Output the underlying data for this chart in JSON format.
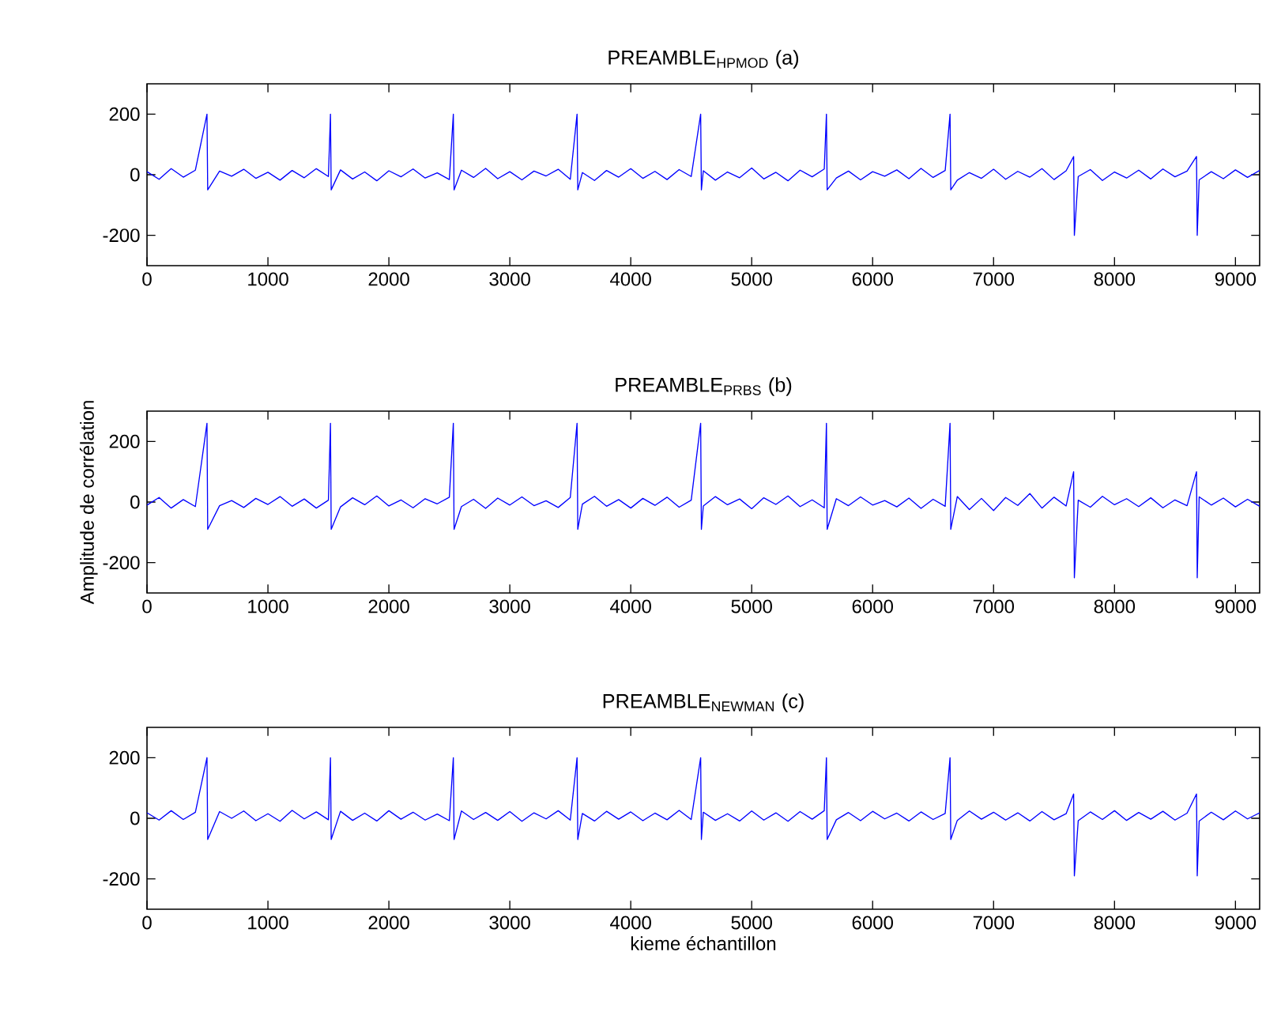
{
  "chart_data": [
    {
      "type": "line",
      "title": "PREAMBLE$_{HPMOD}$ (a)",
      "xlim": [
        0,
        9200
      ],
      "ylim": [
        -300,
        300
      ],
      "xticks": [
        0,
        1000,
        2000,
        3000,
        4000,
        5000,
        6000,
        7000,
        8000,
        9000
      ],
      "yticks": [
        -200,
        0,
        200
      ],
      "grid": false,
      "x": [
        0,
        100,
        200,
        300,
        400,
        496,
        502,
        600,
        700,
        800,
        900,
        1000,
        1100,
        1200,
        1300,
        1400,
        1500,
        1517,
        1523,
        1600,
        1700,
        1800,
        1900,
        2000,
        2100,
        2200,
        2300,
        2400,
        2500,
        2533,
        2539,
        2600,
        2700,
        2800,
        2900,
        3000,
        3100,
        3200,
        3300,
        3400,
        3500,
        3556,
        3562,
        3600,
        3700,
        3800,
        3900,
        4000,
        4100,
        4200,
        4300,
        4400,
        4500,
        4578,
        4584,
        4600,
        4700,
        4800,
        4900,
        5000,
        5100,
        5200,
        5300,
        5400,
        5500,
        5600,
        5618,
        5624,
        5700,
        5800,
        5900,
        6000,
        6100,
        6200,
        6300,
        6400,
        6500,
        6600,
        6640,
        6646,
        6700,
        6800,
        6900,
        7000,
        7100,
        7200,
        7300,
        7400,
        7500,
        7600,
        7662,
        7668,
        7700,
        7800,
        7900,
        8000,
        8100,
        8200,
        8300,
        8400,
        8500,
        8600,
        8678,
        8684,
        8700,
        8800,
        8900,
        9000,
        9100,
        9200
      ],
      "series": [
        {
          "color": "#0000ff",
          "values": [
            10,
            -15,
            20,
            -8,
            15,
            200,
            -50,
            12,
            -5,
            18,
            -12,
            8,
            -18,
            14,
            -10,
            20,
            -6,
            200,
            -50,
            16,
            -14,
            9,
            -20,
            13,
            -7,
            19,
            -11,
            6,
            -16,
            200,
            -50,
            15,
            -9,
            21,
            -13,
            10,
            -17,
            12,
            -4,
            18,
            -15,
            200,
            -50,
            7,
            -19,
            14,
            -8,
            20,
            -12,
            11,
            -16,
            17,
            -6,
            200,
            -50,
            13,
            -18,
            9,
            -10,
            22,
            -14,
            8,
            -20,
            15,
            -7,
            19,
            200,
            -50,
            -11,
            12,
            -17,
            10,
            -5,
            16,
            -13,
            21,
            -9,
            14,
            200,
            -50,
            -18,
            7,
            -12,
            18,
            -15,
            11,
            -8,
            20,
            -16,
            13,
            60,
            -200,
            -6,
            17,
            -19,
            9,
            -11,
            15,
            -14,
            19,
            -7,
            12,
            60,
            -200,
            -17,
            10,
            -13,
            16,
            -9,
            14
          ]
        }
      ]
    },
    {
      "type": "line",
      "title": "PREAMBLE$_{PRBS}$ (b)",
      "ylabel": "Amplitude de corrélation",
      "xlim": [
        0,
        9200
      ],
      "ylim": [
        -300,
        300
      ],
      "xticks": [
        0,
        1000,
        2000,
        3000,
        4000,
        5000,
        6000,
        7000,
        8000,
        9000
      ],
      "yticks": [
        -200,
        0,
        200
      ],
      "grid": false,
      "x": [
        0,
        100,
        200,
        300,
        400,
        496,
        502,
        600,
        700,
        800,
        900,
        1000,
        1100,
        1200,
        1300,
        1400,
        1500,
        1517,
        1523,
        1600,
        1700,
        1800,
        1900,
        2000,
        2100,
        2200,
        2300,
        2400,
        2500,
        2533,
        2539,
        2600,
        2700,
        2800,
        2900,
        3000,
        3100,
        3200,
        3300,
        3400,
        3500,
        3556,
        3562,
        3600,
        3700,
        3800,
        3900,
        4000,
        4100,
        4200,
        4300,
        4400,
        4500,
        4578,
        4584,
        4600,
        4700,
        4800,
        4900,
        5000,
        5100,
        5200,
        5300,
        5400,
        5500,
        5600,
        5618,
        5624,
        5700,
        5800,
        5900,
        6000,
        6100,
        6200,
        6300,
        6400,
        6500,
        6600,
        6640,
        6646,
        6700,
        6800,
        6900,
        7000,
        7100,
        7200,
        7300,
        7400,
        7500,
        7600,
        7662,
        7668,
        7700,
        7800,
        7900,
        8000,
        8100,
        8200,
        8300,
        8400,
        8500,
        8600,
        8678,
        8684,
        8700,
        8800,
        8900,
        9000,
        9100,
        9200
      ],
      "series": [
        {
          "color": "#0000ff",
          "values": [
            -10,
            15,
            -20,
            8,
            -15,
            260,
            -90,
            -12,
            5,
            -18,
            12,
            -8,
            18,
            -14,
            10,
            -20,
            6,
            260,
            -90,
            -16,
            14,
            -9,
            20,
            -13,
            7,
            -19,
            11,
            -6,
            16,
            260,
            -90,
            -15,
            9,
            -21,
            13,
            -10,
            17,
            -12,
            4,
            -18,
            15,
            260,
            -90,
            -7,
            19,
            -14,
            8,
            -20,
            12,
            -11,
            16,
            -17,
            6,
            260,
            -90,
            -13,
            18,
            -9,
            10,
            -22,
            14,
            -8,
            20,
            -15,
            7,
            -19,
            260,
            -90,
            11,
            -12,
            17,
            -10,
            5,
            -16,
            13,
            -21,
            9,
            -14,
            260,
            -90,
            18,
            -25,
            12,
            -28,
            15,
            -11,
            28,
            -20,
            16,
            -13,
            100,
            -250,
            6,
            -17,
            19,
            -9,
            11,
            -15,
            14,
            -19,
            7,
            -12,
            100,
            -250,
            17,
            -10,
            13,
            -16,
            9,
            -14
          ]
        }
      ]
    },
    {
      "type": "line",
      "title": "PREAMBLE$_{NEWMAN}$ (c)",
      "xlabel": "kieme échantillon",
      "xlim": [
        0,
        9200
      ],
      "ylim": [
        -300,
        300
      ],
      "xticks": [
        0,
        1000,
        2000,
        3000,
        4000,
        5000,
        6000,
        7000,
        8000,
        9000
      ],
      "yticks": [
        -200,
        0,
        200
      ],
      "grid": false,
      "x": [
        0,
        100,
        200,
        300,
        400,
        496,
        502,
        600,
        700,
        800,
        900,
        1000,
        1100,
        1200,
        1300,
        1400,
        1500,
        1517,
        1523,
        1600,
        1700,
        1800,
        1900,
        2000,
        2100,
        2200,
        2300,
        2400,
        2500,
        2533,
        2539,
        2600,
        2700,
        2800,
        2900,
        3000,
        3100,
        3200,
        3300,
        3400,
        3500,
        3556,
        3562,
        3600,
        3700,
        3800,
        3900,
        4000,
        4100,
        4200,
        4300,
        4400,
        4500,
        4578,
        4584,
        4600,
        4700,
        4800,
        4900,
        5000,
        5100,
        5200,
        5300,
        5400,
        5500,
        5600,
        5618,
        5624,
        5700,
        5800,
        5900,
        6000,
        6100,
        6200,
        6300,
        6400,
        6500,
        6600,
        6640,
        6646,
        6700,
        6800,
        6900,
        7000,
        7100,
        7200,
        7300,
        7400,
        7500,
        7600,
        7662,
        7668,
        7700,
        7800,
        7900,
        8000,
        8100,
        8200,
        8300,
        8400,
        8500,
        8600,
        8678,
        8684,
        8700,
        8800,
        8900,
        9000,
        9100,
        9200
      ],
      "series": [
        {
          "color": "#0000ff",
          "values": [
            18,
            -6,
            25,
            -4,
            20,
            200,
            -70,
            22,
            0,
            24,
            -8,
            15,
            -10,
            26,
            -2,
            21,
            -5,
            200,
            -70,
            23,
            -7,
            17,
            -9,
            25,
            -3,
            20,
            -6,
            14,
            -8,
            200,
            -70,
            24,
            -4,
            19,
            -7,
            22,
            -10,
            18,
            -2,
            25,
            -6,
            200,
            -70,
            16,
            -9,
            23,
            -3,
            21,
            -8,
            17,
            -5,
            26,
            -4,
            200,
            -70,
            20,
            -7,
            15,
            -9,
            24,
            -6,
            18,
            -10,
            22,
            -3,
            25,
            200,
            -70,
            -5,
            19,
            -8,
            23,
            -2,
            17,
            -9,
            21,
            -4,
            16,
            200,
            -70,
            -7,
            24,
            -3,
            20,
            -6,
            18,
            -9,
            22,
            -5,
            15,
            80,
            -190,
            -8,
            21,
            -4,
            25,
            -7,
            19,
            -3,
            23,
            -6,
            17,
            80,
            -190,
            -9,
            20,
            -5,
            24,
            -2,
            18
          ]
        }
      ]
    }
  ]
}
